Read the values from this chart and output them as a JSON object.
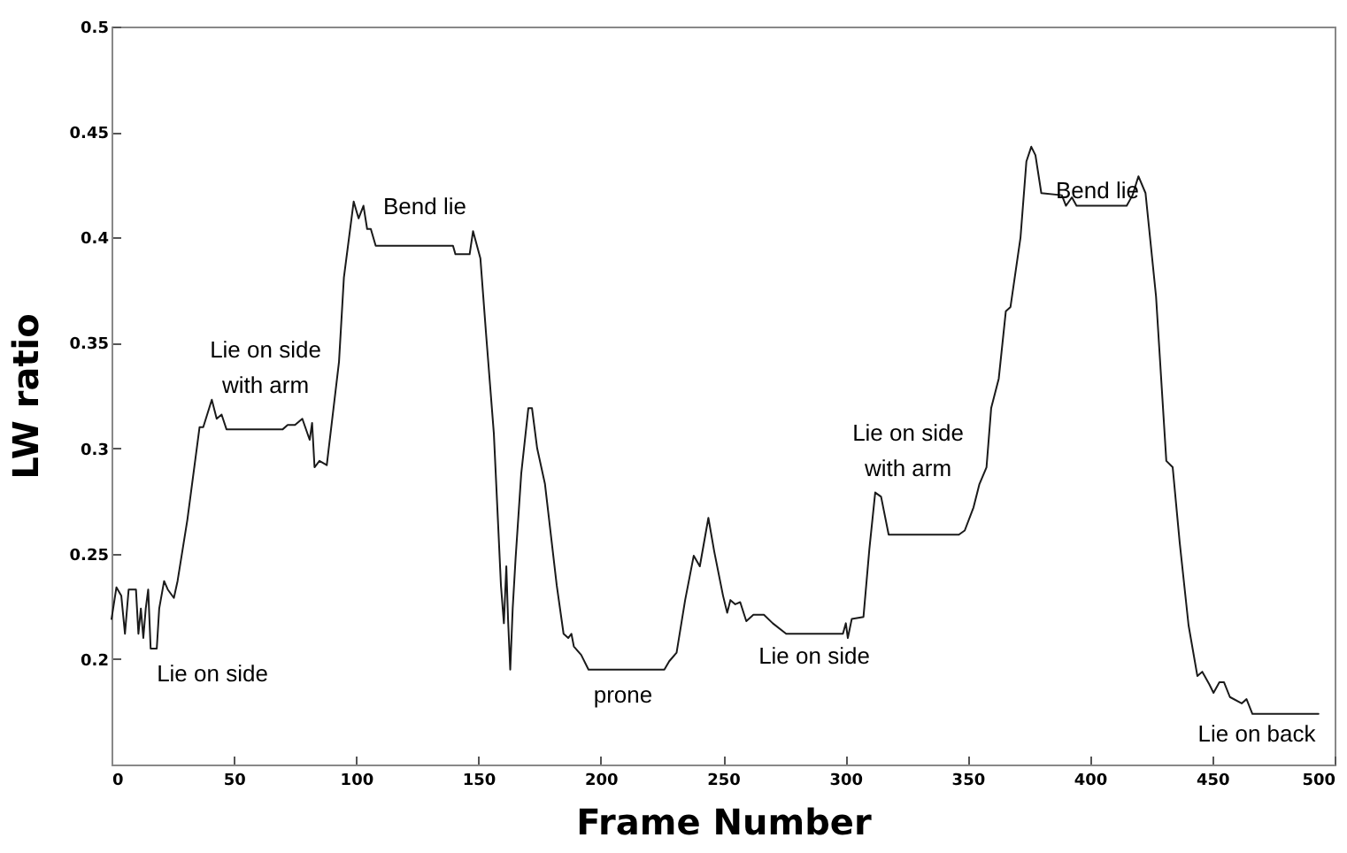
{
  "chart_data": {
    "type": "line",
    "xlabel": "Frame Number",
    "ylabel": "LW ratio",
    "xlim": [
      0,
      500
    ],
    "xticks": [
      0,
      50,
      100,
      150,
      200,
      250,
      300,
      350,
      400,
      450,
      500
    ],
    "ylim": [
      0.15,
      0.5
    ],
    "yticks": [
      0.2,
      0.25,
      0.3,
      0.35,
      0.4,
      0.45,
      0.5
    ],
    "grid": false,
    "marker": "none",
    "line_style": "solid",
    "series": [
      {
        "color": "#1a1a1a",
        "x": [
          0,
          2,
          4,
          5.5,
          7,
          10,
          11,
          12,
          13,
          14,
          15,
          16,
          18.5,
          19.5,
          21.5,
          23,
          25.5,
          27,
          31,
          36,
          37.5,
          41,
          43,
          45,
          47,
          70,
          72,
          75,
          78,
          81,
          82,
          83,
          85,
          88,
          93,
          95,
          99,
          101,
          103,
          104.5,
          106,
          107,
          108,
          121,
          139.6,
          140.6,
          146.4,
          147.8,
          150.8,
          153.2,
          156.3,
          158,
          159.2,
          160.4,
          161.4,
          162.1,
          163,
          164,
          165.2,
          167.5,
          170.4,
          171.9,
          174,
          177.2,
          182,
          184.8,
          186.7,
          188,
          189,
          192,
          195,
          201,
          226,
          228,
          231,
          234.5,
          238,
          240.5,
          244,
          246.4,
          250,
          251.7,
          253,
          255,
          257,
          259.5,
          262.4,
          266.7,
          270.3,
          275.8,
          299,
          300.2,
          301,
          302.6,
          307.4,
          309.8,
          312.2,
          314.6,
          317.7,
          346.4,
          348.8,
          352.4,
          354.8,
          357.7,
          359.6,
          362.7,
          365.6,
          367.5,
          371.6,
          374,
          376,
          377.7,
          380.1,
          388.5,
          390.2,
          392.6,
          394.5,
          415,
          417.4,
          419.8,
          422.7,
          427,
          431.2,
          433.8,
          436.7,
          440.3,
          443.9,
          445.9,
          448.8,
          450.5,
          452.9,
          454.8,
          457.2,
          462,
          464,
          466.4,
          493.4
        ],
        "values": [
          0.219,
          0.234,
          0.23,
          0.212,
          0.233,
          0.233,
          0.212,
          0.224,
          0.21,
          0.224,
          0.233,
          0.205,
          0.205,
          0.224,
          0.237,
          0.233,
          0.229,
          0.237,
          0.266,
          0.31,
          0.31,
          0.323,
          0.314,
          0.316,
          0.309,
          0.309,
          0.311,
          0.311,
          0.314,
          0.304,
          0.312,
          0.291,
          0.294,
          0.292,
          0.341,
          0.381,
          0.417,
          0.409,
          0.415,
          0.404,
          0.404,
          0.4,
          0.396,
          0.396,
          0.396,
          0.392,
          0.392,
          0.403,
          0.39,
          0.353,
          0.307,
          0.265,
          0.235,
          0.217,
          0.244,
          0.219,
          0.195,
          0.224,
          0.248,
          0.288,
          0.319,
          0.319,
          0.3,
          0.283,
          0.235,
          0.212,
          0.21,
          0.212,
          0.206,
          0.202,
          0.195,
          0.195,
          0.195,
          0.199,
          0.203,
          0.228,
          0.249,
          0.244,
          0.267,
          0.251,
          0.23,
          0.222,
          0.228,
          0.226,
          0.227,
          0.218,
          0.221,
          0.221,
          0.217,
          0.212,
          0.212,
          0.217,
          0.21,
          0.219,
          0.22,
          0.252,
          0.279,
          0.277,
          0.259,
          0.259,
          0.261,
          0.272,
          0.283,
          0.291,
          0.319,
          0.333,
          0.365,
          0.367,
          0.4,
          0.436,
          0.443,
          0.439,
          0.421,
          0.42,
          0.415,
          0.419,
          0.415,
          0.415,
          0.42,
          0.429,
          0.421,
          0.372,
          0.294,
          0.291,
          0.255,
          0.216,
          0.192,
          0.194,
          0.188,
          0.184,
          0.189,
          0.189,
          0.182,
          0.179,
          0.181,
          0.174,
          0.174
        ]
      }
    ],
    "annotations": [
      "Lie on side",
      "Lie on side\nwith arm",
      "Bend lie",
      "prone",
      "Lie on side",
      "Lie on side\nwith arm",
      "Bend lie",
      "Lie on back"
    ]
  }
}
